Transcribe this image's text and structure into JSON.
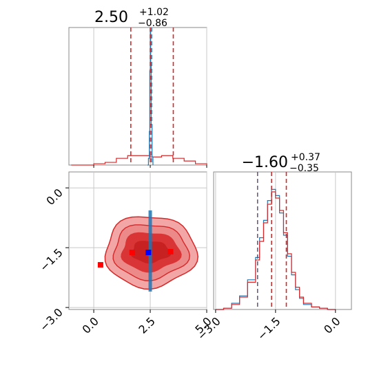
{
  "chart_data": {
    "type": "corner",
    "params": [
      {
        "title_value": "2.50",
        "title_plus": "+1.02",
        "title_minus": "−0.86",
        "range": [
          -1.1,
          5.0
        ],
        "ticks": [
          0.0,
          2.5,
          5.0
        ],
        "tick_labels": [
          "0.0",
          "2.5",
          "5.0"
        ],
        "quantiles": [
          1.64,
          2.5,
          3.52
        ]
      },
      {
        "title_value": "−1.60",
        "title_plus": "+0.37",
        "title_minus": "−0.35",
        "range": [
          -3.05,
          0.4
        ],
        "ticks": [
          -3.0,
          -1.5,
          0.0
        ],
        "tick_labels": [
          "−3.0",
          "−1.5",
          "0.0"
        ],
        "quantiles": [
          -1.95,
          -1.6,
          -1.23
        ]
      }
    ],
    "series": [
      {
        "name": "",
        "color": "#d62728",
        "dashed_color": "#d62728"
      },
      {
        "name": "",
        "color": "#1f77b4",
        "dashed_color": "#1f77b4"
      }
    ],
    "hist_p1_red": {
      "x": [
        -1.0,
        -0.5,
        0.0,
        0.5,
        1.0,
        1.5,
        2.0,
        2.5,
        3.0,
        3.5,
        4.0,
        4.5,
        5.0
      ],
      "density": [
        0.0,
        0.0,
        0.01,
        0.02,
        0.05,
        0.07,
        0.07,
        0.06,
        0.07,
        0.05,
        0.03,
        0.01,
        0.0
      ]
    },
    "hist_p1_blue": {
      "x": [
        2.38,
        2.42,
        2.46,
        2.48,
        2.5,
        2.52,
        2.54,
        2.58,
        2.62
      ],
      "density": [
        0.0,
        0.05,
        0.25,
        0.7,
        1.0,
        0.75,
        0.3,
        0.06,
        0.0
      ]
    },
    "hist_p2_red": {
      "x": [
        -3.0,
        -2.8,
        -2.6,
        -2.4,
        -2.2,
        -2.0,
        -1.9,
        -1.8,
        -1.7,
        -1.6,
        -1.5,
        -1.4,
        -1.3,
        -1.2,
        -1.1,
        -1.0,
        -0.9,
        -0.8,
        -0.6,
        -0.4,
        -0.2,
        0.0
      ],
      "density": [
        0.0,
        0.01,
        0.04,
        0.1,
        0.22,
        0.4,
        0.55,
        0.7,
        0.85,
        0.95,
        0.9,
        0.8,
        0.62,
        0.45,
        0.3,
        0.18,
        0.1,
        0.05,
        0.02,
        0.01,
        0.0,
        0.0
      ]
    },
    "hist_p2_blue": {
      "x": [
        -3.0,
        -2.8,
        -2.6,
        -2.4,
        -2.2,
        -2.0,
        -1.9,
        -1.8,
        -1.7,
        -1.6,
        -1.5,
        -1.4,
        -1.3,
        -1.2,
        -1.1,
        -1.0,
        -0.9,
        -0.8,
        -0.6,
        -0.4,
        -0.2,
        0.0
      ],
      "density": [
        0.0,
        0.01,
        0.05,
        0.11,
        0.24,
        0.42,
        0.58,
        0.72,
        0.88,
        0.97,
        0.92,
        0.78,
        0.6,
        0.43,
        0.28,
        0.16,
        0.09,
        0.04,
        0.02,
        0.01,
        0.0,
        0.0
      ]
    },
    "scatter_markers": [
      {
        "x": 0.3,
        "y": -1.93,
        "color": "#ff0000"
      },
      {
        "x": 1.7,
        "y": -1.62,
        "color": "#ff0000"
      },
      {
        "x": 2.42,
        "y": -1.62,
        "color": "#0000ff"
      },
      {
        "x": 3.4,
        "y": -1.6,
        "color": "#ff0000"
      }
    ],
    "contour_center": {
      "x": 2.5,
      "y": -1.6
    },
    "grid": true
  }
}
